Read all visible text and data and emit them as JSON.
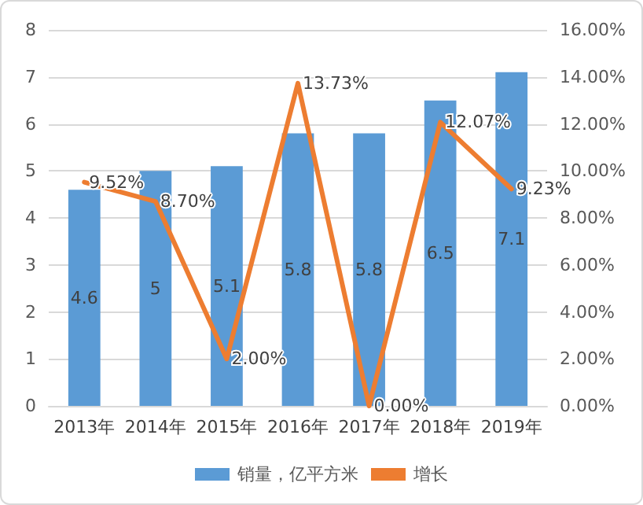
{
  "chart_data": {
    "type": "bar",
    "categories": [
      "2013年",
      "2014年",
      "2015年",
      "2016年",
      "2017年",
      "2018年",
      "2019年"
    ],
    "series": [
      {
        "name": "销量，亿平方米",
        "color": "#5b9bd5",
        "values": [
          4.6,
          5,
          5.1,
          5.8,
          5.8,
          6.5,
          7.1
        ],
        "value_labels": [
          "4.6",
          "5",
          "5.1",
          "5.8",
          "5.8",
          "6.5",
          "7.1"
        ]
      },
      {
        "name": "增长",
        "type": "line",
        "axis": "y2",
        "color": "#ed7d31",
        "values": [
          9.52,
          8.7,
          2.0,
          13.73,
          0.0,
          12.07,
          9.23
        ],
        "value_labels": [
          "9.52%",
          "8.70%",
          "2.00%",
          "13.73%",
          "0.00%",
          "12.07%",
          "9.23%"
        ]
      }
    ],
    "ylim": [
      0,
      8
    ],
    "yticks": [
      0,
      1,
      2,
      3,
      4,
      5,
      6,
      7,
      8
    ],
    "y2lim": [
      0,
      16
    ],
    "y2ticks": [
      {
        "value": 0,
        "label": "0.00%"
      },
      {
        "value": 2,
        "label": "2.00%"
      },
      {
        "value": 4,
        "label": "4.00%"
      },
      {
        "value": 6,
        "label": "6.00%"
      },
      {
        "value": 8,
        "label": "8.00%"
      },
      {
        "value": 10,
        "label": "10.00%"
      },
      {
        "value": 12,
        "label": "12.00%"
      },
      {
        "value": 14,
        "label": "14.00%"
      },
      {
        "value": 16,
        "label": "16.00%"
      }
    ],
    "grid": "y",
    "legend": "bottom",
    "marker": "none",
    "line_style": "solid"
  }
}
